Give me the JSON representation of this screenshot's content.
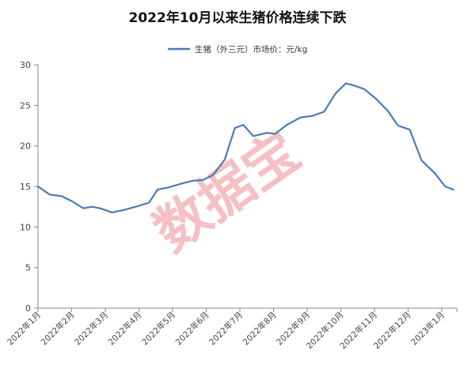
{
  "chart_data": {
    "type": "line",
    "title": "2022年10月以来生猪价格连续下跌",
    "legend": {
      "position": "top",
      "entries": [
        "生猪（外三元）市场价：元/kg"
      ]
    },
    "ylim": [
      0,
      30
    ],
    "yticks": [
      0,
      5,
      10,
      15,
      20,
      25,
      30
    ],
    "grid": false,
    "x_tick_labels": [
      "2022年1月",
      "2022年2月",
      "2022年3月",
      "2022年4月",
      "2022年5月",
      "2022年6月",
      "2022年7月",
      "2022年8月",
      "2022年9月",
      "2022年10月",
      "2022年11月",
      "2022年12月",
      "2023年1月"
    ],
    "series": [
      {
        "name": "生猪（外三元）市场价：元/kg",
        "color": "#4a7ab5",
        "x": [
          0,
          0.35,
          0.7,
          1.0,
          1.35,
          1.6,
          1.85,
          2.2,
          2.55,
          2.9,
          3.3,
          3.55,
          3.9,
          4.3,
          4.6,
          4.9,
          5.2,
          5.55,
          5.85,
          6.1,
          6.4,
          6.8,
          7.05,
          7.4,
          7.8,
          8.15,
          8.5,
          8.85,
          9.15,
          9.35,
          9.7,
          10.05,
          10.4,
          10.7,
          11.05,
          11.4,
          11.8,
          12.1,
          12.35
        ],
        "values": [
          15.0,
          14.0,
          13.8,
          13.2,
          12.3,
          12.5,
          12.3,
          11.8,
          12.1,
          12.5,
          13.0,
          14.6,
          14.9,
          15.4,
          15.7,
          15.8,
          16.4,
          18.3,
          22.2,
          22.6,
          21.2,
          21.6,
          21.5,
          22.6,
          23.5,
          23.7,
          24.2,
          26.5,
          27.7,
          27.5,
          27.0,
          25.8,
          24.3,
          22.5,
          22.0,
          18.2,
          16.6,
          15.0,
          14.6
        ]
      }
    ]
  },
  "watermark": "数据宝"
}
